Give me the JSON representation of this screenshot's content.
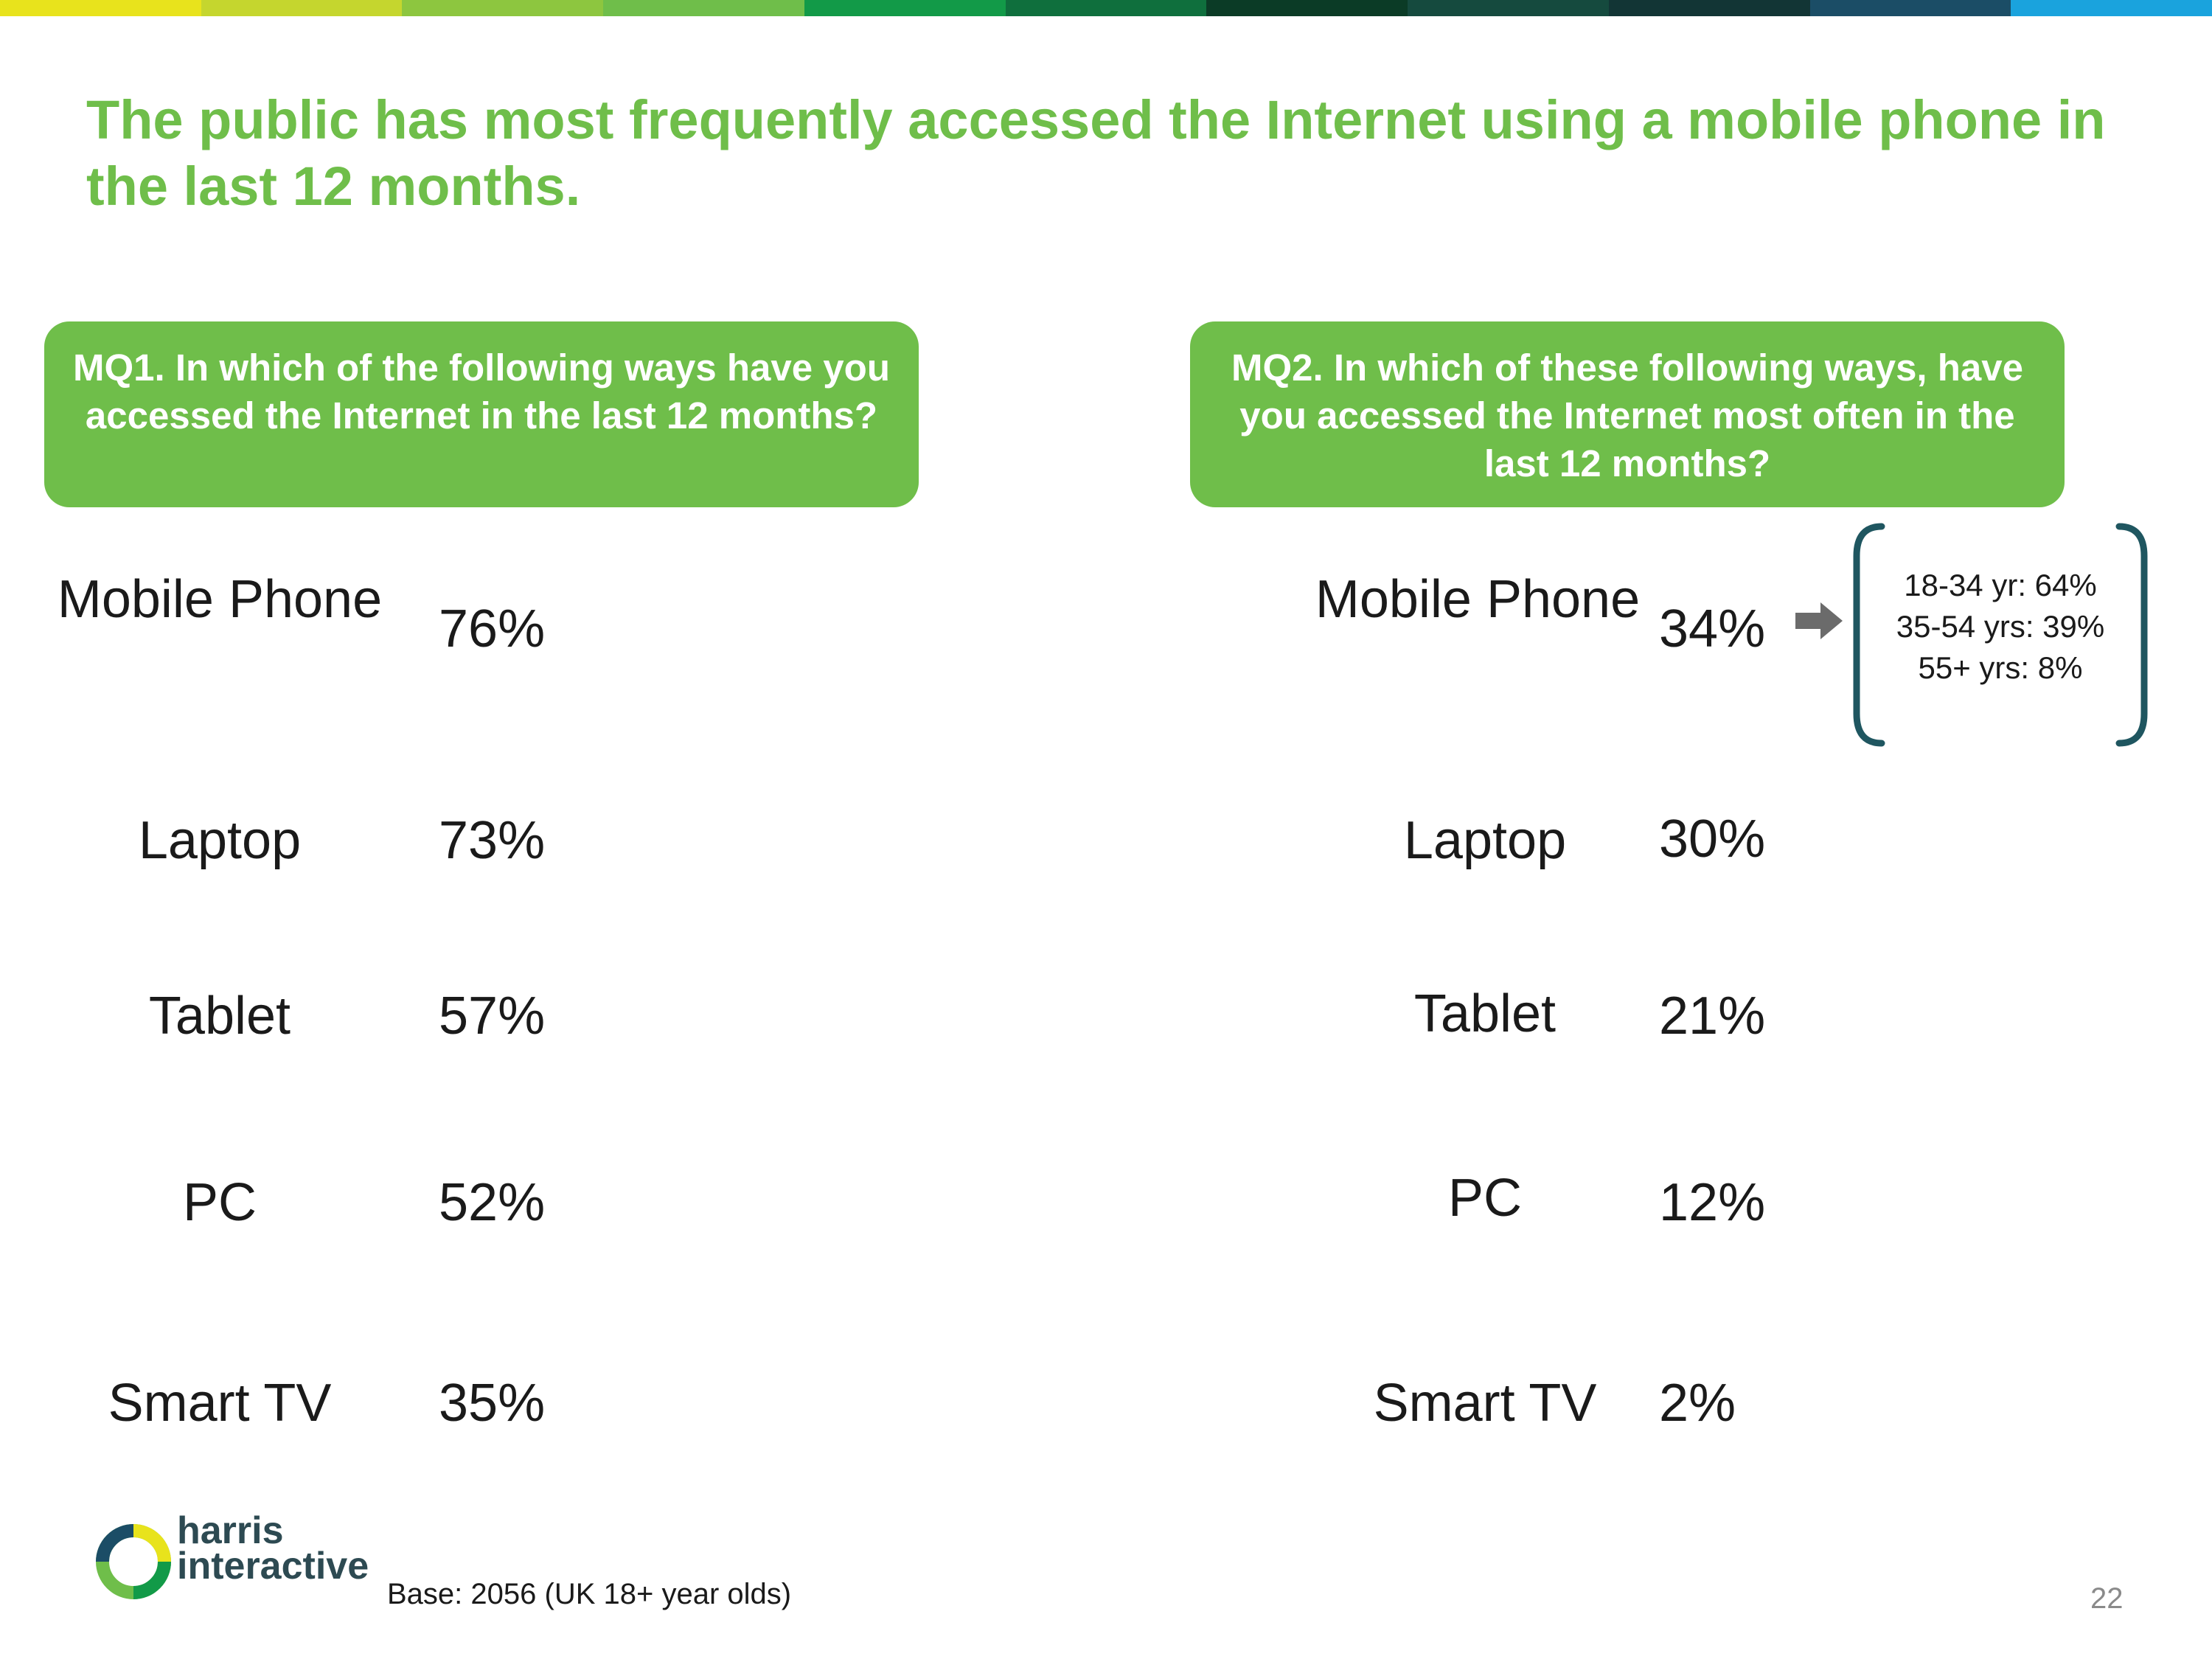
{
  "colors": {
    "accent": "#6fbe4a",
    "topbar": [
      "#e8e31c",
      "#c5d62e",
      "#8dc63f",
      "#6fbe4a",
      "#129a48",
      "#0f6f3d",
      "#0b3b26",
      "#154a3e",
      "#123535",
      "#1b4d66",
      "#1aa3dd"
    ],
    "bracket": "#1f5660",
    "arrow": "#6b6b6b"
  },
  "title": "The public has most frequently accessed the Internet using a mobile phone in the last 12 months.",
  "mq1": {
    "code": "MQ1",
    "question": ". In which of the following ways have you accessed the Internet in the last 12 months?",
    "rows": [
      {
        "label": "Mobile Phone",
        "value": "76%"
      },
      {
        "label": "Laptop",
        "value": "73%"
      },
      {
        "label": "Tablet",
        "value": "57%"
      },
      {
        "label": "PC",
        "value": "52%"
      },
      {
        "label": "Smart TV",
        "value": "35%"
      }
    ]
  },
  "mq2": {
    "code": "MQ2",
    "question": ". In which of these following ways, have you accessed the Internet most often in the last 12 months?",
    "rows": [
      {
        "label": "Mobile Phone",
        "value": "34%"
      },
      {
        "label": "Laptop",
        "value": "30%"
      },
      {
        "label": "Tablet",
        "value": "21%"
      },
      {
        "label": "PC",
        "value": "12%"
      },
      {
        "label": "Smart TV",
        "value": "2%"
      }
    ],
    "mobile_age_breakdown": [
      "18-34 yr: 64%",
      "35-54 yrs: 39%",
      "55+ yrs: 8%"
    ]
  },
  "logo": {
    "line1": "harris",
    "line2": "interactive"
  },
  "base_note": "Base: 2056 (UK 18+ year olds)",
  "page_number": "22"
}
